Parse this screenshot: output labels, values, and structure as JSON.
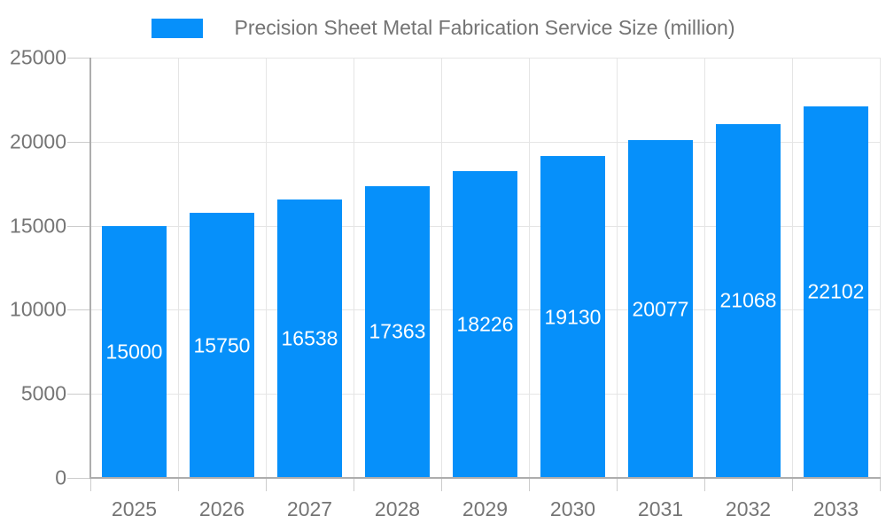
{
  "chart_data": {
    "type": "bar",
    "title": "Precision Sheet Metal Fabrication Service Size (million)",
    "legend": {
      "position": "top",
      "entries": [
        {
          "label": "Precision Sheet Metal Fabrication Service Size (million)",
          "color": "#0690fa"
        }
      ]
    },
    "categories": [
      "2025",
      "2026",
      "2027",
      "2028",
      "2029",
      "2030",
      "2031",
      "2032",
      "2033"
    ],
    "values": [
      15000,
      15750,
      16538,
      17363,
      18226,
      19130,
      20077,
      21068,
      22102
    ],
    "xlabel": "",
    "ylabel": "",
    "ylim": [
      0,
      25000
    ],
    "yticks": [
      0,
      5000,
      10000,
      15000,
      20000,
      25000
    ],
    "grid": true,
    "bar_color": "#0690fa",
    "value_labels": {
      "position": "inside-center",
      "color": "#ffffff"
    },
    "colors": {
      "grid": "#e5e5e5",
      "axis": "#adadad",
      "tick": "#cccccc",
      "tick_label": "#757575",
      "title": "#747474",
      "background": "#ffffff"
    }
  }
}
